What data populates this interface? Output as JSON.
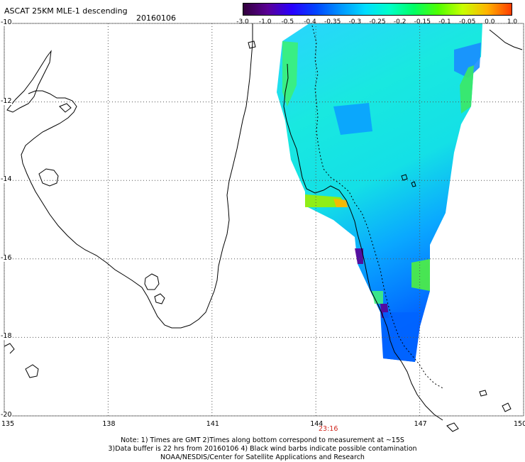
{
  "header": {
    "title": "ASCAT 25KM MLE-1 descending",
    "date": "20160106"
  },
  "colorbar": {
    "ticks": [
      "-3.0",
      "-1.0",
      "-0.5",
      "-0.4",
      "-0.35",
      "-0.3",
      "-0.25",
      "-0.2",
      "-0.15",
      "-0.1",
      "-0.05",
      "0.0",
      "1.0"
    ],
    "colors": [
      "#32003c",
      "#5a0096",
      "#2800ff",
      "#0046ff",
      "#0096ff",
      "#00dcff",
      "#00ffc8",
      "#00ff64",
      "#50ff00",
      "#c8ff00",
      "#ffb400",
      "#ff3c00"
    ]
  },
  "axes": {
    "x_ticks": [
      "135",
      "138",
      "141",
      "144",
      "147",
      "150"
    ],
    "y_ticks": [
      "-10",
      "-12",
      "-14",
      "-16",
      "-18",
      "-20"
    ],
    "x_range": [
      135,
      150
    ],
    "y_range": [
      -20,
      -10
    ]
  },
  "timestamp": "23:16",
  "notes": {
    "line1": "Note: 1) Times are GMT 2)Times along bottom correspond to measurement at ~15S",
    "line2": "3)Data buffer is 22 hrs from 20160106 4) Black wind barbs indicate possible contamination",
    "line3": "NOAA/NESDIS/Center for Satellite Applications and Research"
  },
  "map_colors": {
    "land": "#ffffff",
    "coast": "#000000",
    "grid": "#555555"
  }
}
